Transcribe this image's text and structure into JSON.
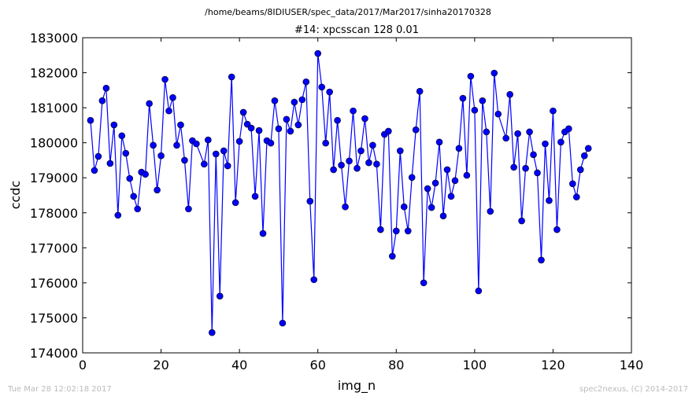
{
  "chart_data": {
    "type": "line",
    "suptitle": "/home/beams/8IDIUSER/spec_data/2017/Mar2017/sinha20170328",
    "title": "#14: xpcsscan 128 0.01",
    "xlabel": "img_n",
    "ylabel": "ccdc",
    "footer_left": "Tue Mar 28 12:02:18 2017",
    "footer_right": "spec2nexus, (C) 2014-2017",
    "xlim": [
      0,
      140
    ],
    "xticks": [
      0,
      20,
      40,
      60,
      80,
      100,
      120,
      140
    ],
    "ylim": [
      174000,
      183000
    ],
    "yticks": [
      174000,
      175000,
      176000,
      177000,
      178000,
      179000,
      180000,
      181000,
      182000,
      183000
    ],
    "x": [
      2,
      3,
      4,
      5,
      6,
      7,
      8,
      9,
      10,
      11,
      12,
      13,
      14,
      15,
      16,
      17,
      18,
      19,
      20,
      21,
      22,
      23,
      24,
      25,
      26,
      27,
      28,
      29,
      31,
      32,
      33,
      34,
      35,
      36,
      37,
      38,
      39,
      40,
      41,
      42,
      43,
      44,
      45,
      46,
      47,
      48,
      49,
      50,
      51,
      52,
      53,
      54,
      55,
      56,
      57,
      58,
      59,
      60,
      61,
      62,
      63,
      64,
      65,
      66,
      67,
      68,
      69,
      70,
      71,
      72,
      73,
      74,
      75,
      76,
      77,
      78,
      79,
      80,
      81,
      82,
      83,
      84,
      85,
      86,
      87,
      88,
      89,
      90,
      91,
      92,
      93,
      94,
      95,
      96,
      97,
      98,
      99,
      100,
      101,
      102,
      103,
      104,
      105,
      106,
      108,
      109,
      110,
      111,
      112,
      113,
      114,
      115,
      116,
      117,
      118,
      119,
      120,
      121,
      122,
      123,
      124,
      125,
      126,
      127,
      128,
      129
    ],
    "series": [
      {
        "name": "ccdc",
        "color": "#0000ff",
        "values": [
          180640,
          179210,
          179610,
          181200,
          181560,
          179410,
          180510,
          177930,
          180200,
          179700,
          178980,
          178470,
          178110,
          179160,
          179100,
          181120,
          179930,
          178650,
          179630,
          181810,
          180910,
          181290,
          179930,
          180510,
          179500,
          178110,
          180060,
          179970,
          179390,
          180080,
          174580,
          179680,
          175620,
          179770,
          179340,
          181880,
          178290,
          180040,
          180870,
          180530,
          180420,
          178470,
          180350,
          177410,
          180060,
          179990,
          181200,
          180400,
          174850,
          180670,
          180330,
          181160,
          180510,
          181230,
          181740,
          178330,
          176090,
          182550,
          181590,
          179990,
          181450,
          179230,
          180640,
          179360,
          178170,
          179480,
          180910,
          179270,
          179770,
          180690,
          179430,
          179930,
          179390,
          177520,
          180240,
          180330,
          176760,
          177480,
          179770,
          178170,
          177480,
          179010,
          180370,
          181470,
          176000,
          178690,
          178150,
          178850,
          180020,
          177910,
          179230,
          178470,
          178920,
          179840,
          181270,
          179070,
          181900,
          180930,
          175770,
          181200,
          180310,
          178040,
          181990,
          180820,
          180130,
          181380,
          179300,
          180260,
          177770,
          179270,
          180310,
          179660,
          179140,
          176650,
          179970,
          178350,
          180910,
          177520,
          180020,
          180310,
          180400,
          178830,
          178450,
          179230,
          179630,
          179840
        ]
      }
    ]
  }
}
